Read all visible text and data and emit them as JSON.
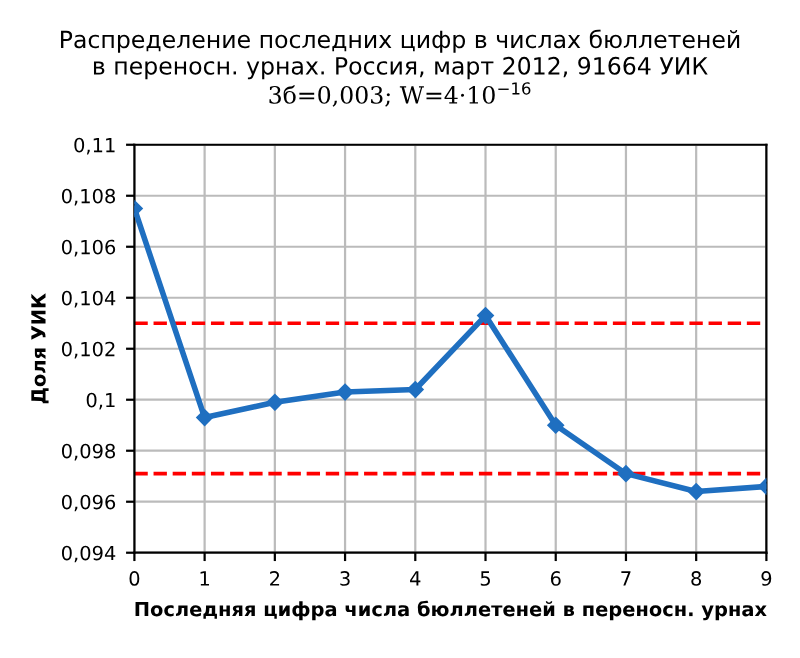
{
  "chart_data": {
    "type": "line",
    "title": "Распределение последних цифр в числах бюллетеней\nв переносн. урнах. Россия, март 2012, 91664 УИК",
    "subtitle": "3б=0,003; W=4·10$^{−16}$",
    "xlabel": "Последняя цифра числа бюллетеней в переносн. урнах",
    "ylabel": "Доля УИК",
    "x": [
      0,
      1,
      2,
      3,
      4,
      5,
      6,
      7,
      8,
      9
    ],
    "series": [
      {
        "color": "#1f6fc0",
        "values": [
          0.1075,
          0.0993,
          0.0999,
          0.1003,
          0.1004,
          0.1033,
          0.099,
          0.0971,
          0.0964,
          0.0966
        ]
      }
    ],
    "xlim": [
      0,
      9
    ],
    "xticks": [
      0,
      1,
      2,
      3,
      4,
      5,
      6,
      7,
      8,
      9
    ],
    "ylim": [
      0.094,
      0.11
    ],
    "yticks": [
      {
        "value": 0.094,
        "label": "0,094"
      },
      {
        "value": 0.096,
        "label": "0,096"
      },
      {
        "value": 0.098,
        "label": "0,098"
      },
      {
        "value": 0.1,
        "label": "0,1"
      },
      {
        "value": 0.102,
        "label": "0,102"
      },
      {
        "value": 0.104,
        "label": "0,104"
      },
      {
        "value": 0.106,
        "label": "0,106"
      },
      {
        "value": 0.108,
        "label": "0,108"
      },
      {
        "value": 0.11,
        "label": "0,11"
      }
    ],
    "ref_lines": [
      {
        "axis": "y",
        "value": 0.103,
        "color": "#ff0000",
        "line_style": "dashed"
      },
      {
        "axis": "y",
        "value": 0.0971,
        "color": "#ff0000",
        "line_style": "dashed"
      }
    ],
    "grid": true,
    "marker": "diamond",
    "line_style": "solid"
  }
}
